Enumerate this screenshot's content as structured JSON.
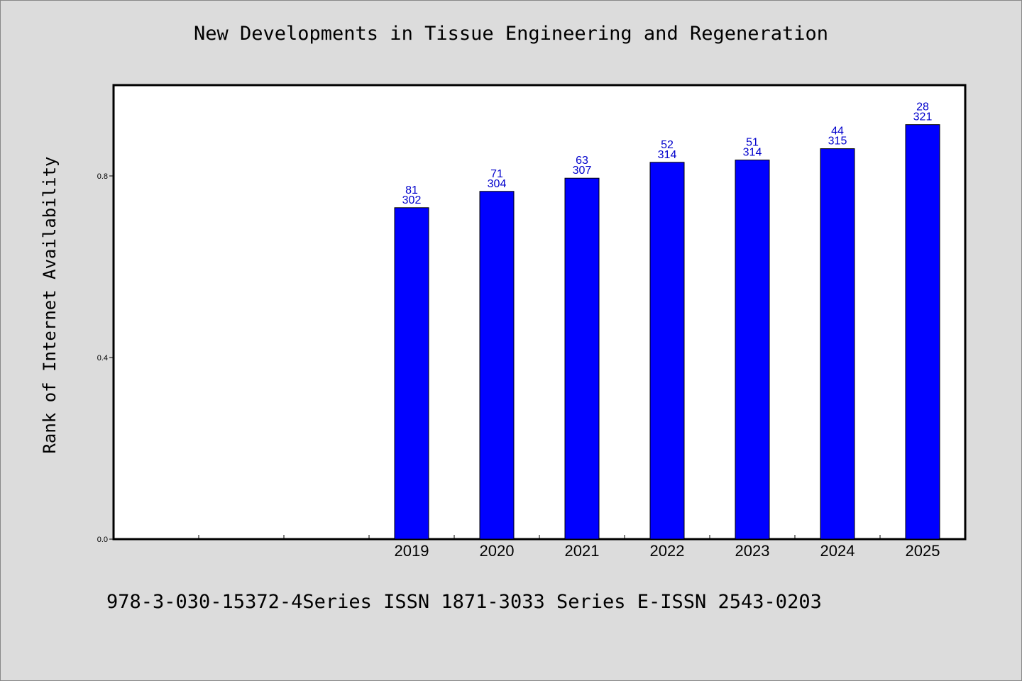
{
  "page": {
    "background": "#dcdcdc",
    "title": "New Developments in Tissue Engineering and Regeneration",
    "footer": "978-3-030-15372-4Series ISSN 1871-3033 Series E-ISSN 2543-0203"
  },
  "chart_data": {
    "type": "bar",
    "title": "New Developments in Tissue Engineering and Regeneration",
    "ylabel": "Rank of Internet Availability",
    "xlabel": "",
    "ylim": [
      0,
      1.0
    ],
    "yticks": [
      {
        "value": 0.0,
        "label": "0.0"
      },
      {
        "value": 0.4,
        "label": "0.4"
      },
      {
        "value": 0.8,
        "label": "0.8"
      }
    ],
    "x_slot_count": 10,
    "categories": [
      "2019",
      "2020",
      "2021",
      "2022",
      "2023",
      "2024",
      "2025"
    ],
    "first_category_slot": 3,
    "values": [
      0.73,
      0.766,
      0.795,
      0.83,
      0.835,
      0.86,
      0.913
    ],
    "label_top": [
      "81",
      "71",
      "63",
      "52",
      "51",
      "44",
      "28"
    ],
    "label_bottom": [
      "302",
      "304",
      "307",
      "314",
      "314",
      "315",
      "321"
    ],
    "bar_color": "#0000ff",
    "label_color": "#0000cc",
    "grid": false
  }
}
